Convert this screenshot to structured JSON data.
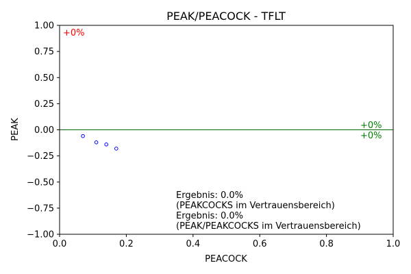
{
  "chart_data": {
    "type": "scatter",
    "title": "PEAK/PEACOCK - TFLT",
    "xlabel": "PEACOCK",
    "ylabel": "PEAK",
    "xlim": [
      0.0,
      1.0
    ],
    "ylim": [
      -1.0,
      1.0
    ],
    "x_ticks": [
      0.0,
      0.2,
      0.4,
      0.6,
      0.8,
      1.0
    ],
    "x_tick_labels": [
      "0.0",
      "0.2",
      "0.4",
      "0.6",
      "0.8",
      "1.0"
    ],
    "y_ticks": [
      1.0,
      0.75,
      0.5,
      0.25,
      0.0,
      -0.25,
      -0.5,
      -0.75,
      -1.0
    ],
    "y_tick_labels": [
      "1.00",
      "0.75",
      "0.50",
      "0.25",
      "0.00",
      "−0.25",
      "−0.50",
      "−0.75",
      "−1.00"
    ],
    "grid": false,
    "points": [
      {
        "x": 0.07,
        "y": -0.06
      },
      {
        "x": 0.11,
        "y": -0.12
      },
      {
        "x": 0.14,
        "y": -0.14
      },
      {
        "x": 0.17,
        "y": -0.18
      }
    ],
    "point_color": "#0000ff",
    "reference_line": {
      "y": 0.0,
      "color": "#006400"
    },
    "annotations": {
      "top_left": {
        "text": "+0%",
        "color": "#ff0000"
      },
      "right_upper": {
        "text": "+0%",
        "color": "#008000"
      },
      "right_lower": {
        "text": "+0%",
        "color": "#008000"
      },
      "result_lines": [
        "Ergebnis: 0.0%",
        "(PEAKCOCKS im Vertrauensbereich)",
        "Ergebnis: 0.0%",
        "(PEAK/PEAKCOCKS im Vertrauensbereich)"
      ],
      "result_color": "#000000"
    }
  }
}
